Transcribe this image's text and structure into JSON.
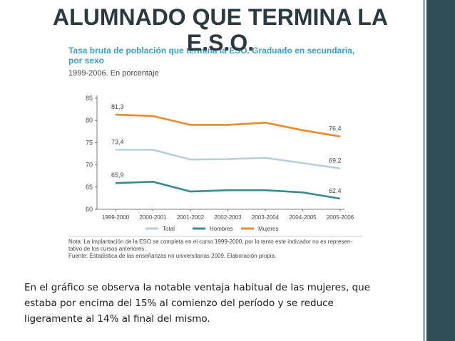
{
  "slide": {
    "title": "ALUMNADO QUE TERMINA LA E.S.O.",
    "caption_lines": [
      "En el gráfico se observa la notable ventaja habitual de las mujeres, que",
      "estaba por encima del 15% al comienzo del período y se reduce",
      "ligeramente al 14% al final del mismo."
    ]
  },
  "colors": {
    "title": "#2b3a40",
    "figure_title": "#33a0c4",
    "side_band": "#2f4f57",
    "total": "#b7cde0",
    "hombres": "#3a8a90",
    "mujeres": "#e98b2a"
  },
  "chart_data": {
    "type": "line",
    "title": "Tasa bruta de población que termina la ESO. Graduado en secundaria, por sexo",
    "subtitle": "1999-2006. En porcentaje",
    "categories": [
      "1999-2000",
      "2000-2001",
      "2001-2002",
      "2002-2003",
      "2003-2004",
      "2004-2005",
      "2005-2006"
    ],
    "ylim": [
      60,
      85
    ],
    "yticks": [
      60,
      65,
      70,
      75,
      80,
      85
    ],
    "grid": false,
    "legend": "bottom",
    "series": [
      {
        "name": "Total",
        "values": [
          73.4,
          73.4,
          71.2,
          71.3,
          71.6,
          70.4,
          69.2
        ],
        "color": "#b7cde0",
        "end_labels": [
          "73,4",
          "69,2"
        ]
      },
      {
        "name": "Hombres",
        "values": [
          65.9,
          66.2,
          64.0,
          64.3,
          64.3,
          63.8,
          62.4
        ],
        "color": "#3a8a90",
        "end_labels": [
          "65,9",
          "62,4"
        ]
      },
      {
        "name": "Mujeres",
        "values": [
          81.3,
          81.0,
          79.0,
          79.0,
          79.5,
          77.8,
          76.4
        ],
        "color": "#e98b2a",
        "end_labels": [
          "81,3",
          "76,4"
        ]
      }
    ],
    "notes": [
      "Nota: La implantación de la ESO se completa en el curso 1999-2000, por lo tanto este indicador no es represen-",
      "tativo de los cursos anteriores.",
      "Fuente: Estadística de las enseñanzas no universitarias 2009. Elaboración propia."
    ]
  }
}
